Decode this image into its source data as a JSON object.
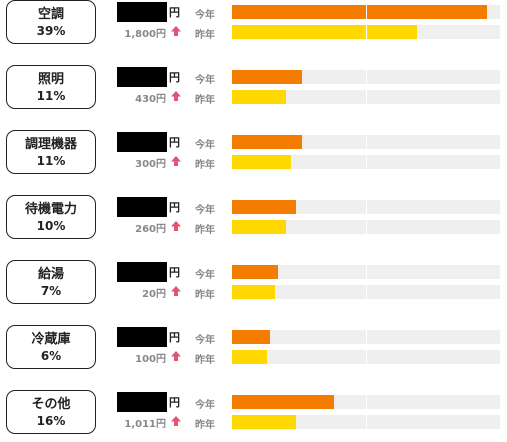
{
  "labels": {
    "this_year": "今年",
    "last_year": "昨年",
    "yen": "円"
  },
  "colors": {
    "this_year": "#f47c00",
    "last_year": "#ffd800",
    "arrow": "#e05570"
  },
  "icons": {
    "diff": "arrow-up-icon"
  },
  "max_value": 100,
  "categories": [
    {
      "name": "空調",
      "percent": "39%",
      "diff": "1,800円",
      "this_year": 95,
      "last_year": 69
    },
    {
      "name": "照明",
      "percent": "11%",
      "diff": "430円",
      "this_year": 26,
      "last_year": 20
    },
    {
      "name": "調理機器",
      "percent": "11%",
      "diff": "300円",
      "this_year": 26,
      "last_year": 22
    },
    {
      "name": "待機電力",
      "percent": "10%",
      "diff": "260円",
      "this_year": 24,
      "last_year": 20
    },
    {
      "name": "給湯",
      "percent": "7%",
      "diff": "20円",
      "this_year": 17,
      "last_year": 16
    },
    {
      "name": "冷蔵庫",
      "percent": "6%",
      "diff": "100円",
      "this_year": 14,
      "last_year": 13
    },
    {
      "name": "その他",
      "percent": "16%",
      "diff": "1,011円",
      "this_year": 38,
      "last_year": 24
    }
  ]
}
